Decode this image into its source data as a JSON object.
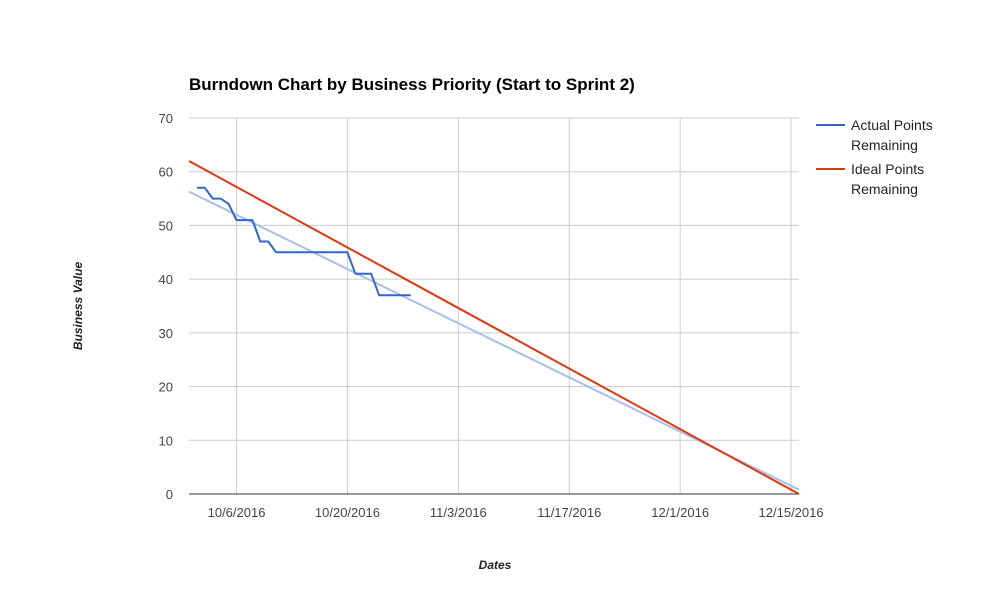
{
  "chart_data": {
    "type": "line",
    "title": "Burndown Chart by Business Priority (Start to Sprint 2)",
    "xlabel": "Dates",
    "ylabel": "Business Value",
    "xlim": [
      "2016-09-30",
      "2016-12-16"
    ],
    "ylim": [
      0,
      70
    ],
    "y_ticks": [
      0,
      10,
      20,
      30,
      40,
      50,
      60,
      70
    ],
    "x_ticks": [
      {
        "date": "2016-10-06",
        "label": "10/6/2016"
      },
      {
        "date": "2016-10-20",
        "label": "10/20/2016"
      },
      {
        "date": "2016-11-03",
        "label": "11/3/2016"
      },
      {
        "date": "2016-11-17",
        "label": "11/17/2016"
      },
      {
        "date": "2016-12-01",
        "label": "12/1/2016"
      },
      {
        "date": "2016-12-15",
        "label": "12/15/2016"
      }
    ],
    "grid": true,
    "legend_position": "right",
    "series": [
      {
        "name": "Actual Points\nRemaining",
        "color": "#3366cc",
        "points": [
          {
            "x": "2016-10-01",
            "y": 57
          },
          {
            "x": "2016-10-02",
            "y": 57
          },
          {
            "x": "2016-10-03",
            "y": 55
          },
          {
            "x": "2016-10-04",
            "y": 55
          },
          {
            "x": "2016-10-05",
            "y": 54
          },
          {
            "x": "2016-10-06",
            "y": 51
          },
          {
            "x": "2016-10-07",
            "y": 51
          },
          {
            "x": "2016-10-08",
            "y": 51
          },
          {
            "x": "2016-10-09",
            "y": 47
          },
          {
            "x": "2016-10-10",
            "y": 47
          },
          {
            "x": "2016-10-11",
            "y": 45
          },
          {
            "x": "2016-10-12",
            "y": 45
          },
          {
            "x": "2016-10-13",
            "y": 45
          },
          {
            "x": "2016-10-14",
            "y": 45
          },
          {
            "x": "2016-10-15",
            "y": 45
          },
          {
            "x": "2016-10-16",
            "y": 45
          },
          {
            "x": "2016-10-17",
            "y": 45
          },
          {
            "x": "2016-10-18",
            "y": 45
          },
          {
            "x": "2016-10-19",
            "y": 45
          },
          {
            "x": "2016-10-20",
            "y": 45
          },
          {
            "x": "2016-10-21",
            "y": 41
          },
          {
            "x": "2016-10-22",
            "y": 41
          },
          {
            "x": "2016-10-23",
            "y": 41
          },
          {
            "x": "2016-10-24",
            "y": 37
          },
          {
            "x": "2016-10-25",
            "y": 37
          },
          {
            "x": "2016-10-26",
            "y": 37
          },
          {
            "x": "2016-10-27",
            "y": 37
          },
          {
            "x": "2016-10-28",
            "y": 37
          }
        ]
      },
      {
        "name": "Ideal Points\nRemaining",
        "color": "#dc3912",
        "points": [
          {
            "x": "2016-09-30",
            "y": 62
          },
          {
            "x": "2016-12-16",
            "y": 0
          }
        ]
      }
    ],
    "trendline": {
      "color": "#a8bfe8",
      "points": [
        {
          "x": "2016-09-30",
          "y": 56.3
        },
        {
          "x": "2016-12-16",
          "y": 0.8
        }
      ]
    }
  }
}
